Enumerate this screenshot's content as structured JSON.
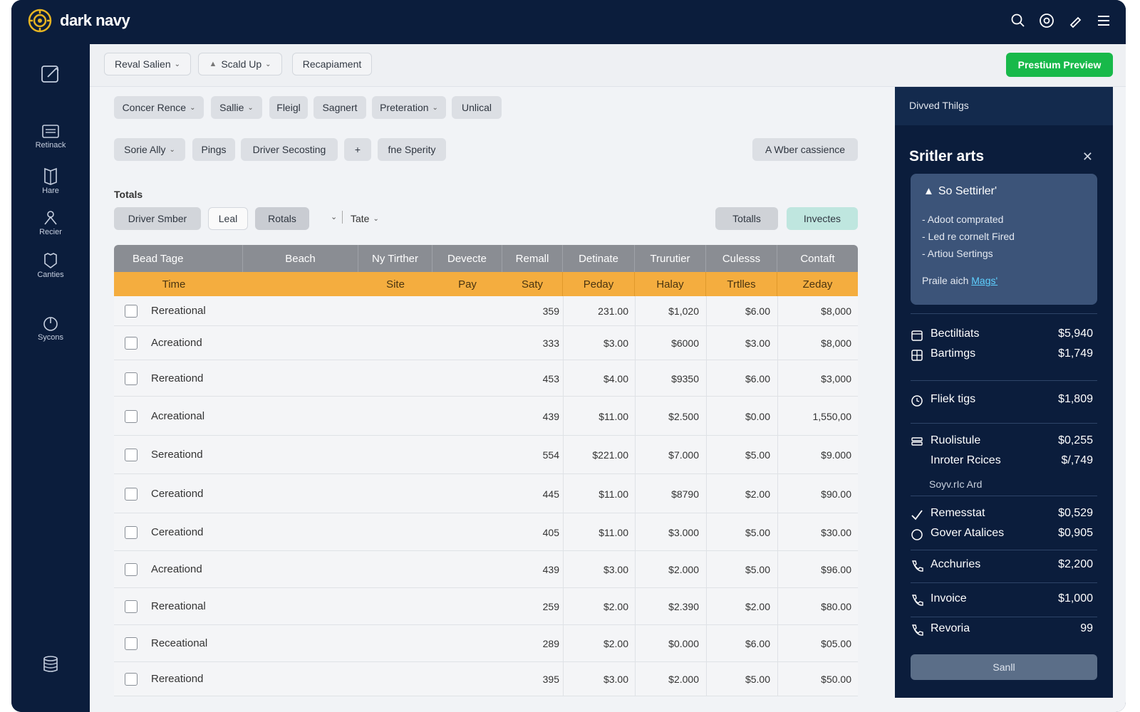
{
  "app": {
    "brand": "dark navy"
  },
  "colors": {
    "accent": "#18b94a",
    "header": "#8a8d93",
    "subheader": "#f4ad3f",
    "navy": "#0b1d3c"
  },
  "topbar": {
    "icons": [
      "search-icon",
      "at-icon",
      "pen-icon",
      "menu-icon"
    ]
  },
  "sidebar": {
    "items": [
      {
        "label": "",
        "icon": "edit-icon"
      },
      {
        "label": "Retinack",
        "icon": "inbox-icon"
      },
      {
        "label": "Hare",
        "icon": "book-icon"
      },
      {
        "label": "Recier",
        "icon": "tool-icon"
      },
      {
        "label": "Canties",
        "icon": "shield-icon"
      },
      {
        "label": "Sycons",
        "icon": "power-icon"
      }
    ],
    "bottom_icon": "stack-icon"
  },
  "toolbar": {
    "btn1": "Reval Salien",
    "btn2": "Scald Up",
    "btn3": "Recapiament",
    "premium": "Prestium Preview"
  },
  "filters1": [
    "Concer Rence",
    "Sallie",
    "Fleigl",
    "Sagnert",
    "Preteration",
    "Unlical"
  ],
  "filters2": {
    "a": "Sorie Ally",
    "b": "Pings",
    "c": "Driver Secosting",
    "d": "+",
    "e": "fne Sperity",
    "right": "A Wber cassience"
  },
  "totals": {
    "title": "Totals",
    "tabs": [
      "Driver Smber",
      "Leal",
      "Rotals"
    ],
    "tate": "Tate",
    "btn_totals": "Totalls",
    "btn_invected": "Invectes"
  },
  "table": {
    "headers": [
      "Bead Tage",
      "Beach",
      "Ny Tirther",
      "Devecte",
      "Remall",
      "Detinate",
      "Trurutier",
      "Culesss",
      "Contaft"
    ],
    "subheaders": [
      "Time",
      "Site",
      "Pay",
      "Saty",
      "Peday",
      "Halay",
      "Trtlles",
      "Zeday"
    ],
    "rows": [
      [
        "Rereational",
        "359",
        "231.00",
        "$1,020",
        "$6.00",
        "$8,000"
      ],
      [
        "Acreationd",
        "333",
        "$3.00",
        "$6000",
        "$3.00",
        "$8,000"
      ],
      [
        "Rereationd",
        "453",
        "$4.00",
        "$9350",
        "$6.00",
        "$3,000"
      ],
      [
        "Acreational",
        "439",
        "$11.00",
        "$2.500",
        "$0.00",
        "1,550,00"
      ],
      [
        "Sereationd",
        "554",
        "$221.00",
        "$7.000",
        "$5.00",
        "$9.000"
      ],
      [
        "Cereationd",
        "445",
        "$11.00",
        "$8790",
        "$2.00",
        "$90.00"
      ],
      [
        "Cereationd",
        "405",
        "$11.00",
        "$3.000",
        "$5.00",
        "$30.00"
      ],
      [
        "Acreationd",
        "439",
        "$3.00",
        "$2.000",
        "$5.00",
        "$96.00"
      ],
      [
        "Rereational",
        "259",
        "$2.00",
        "$2.390",
        "$2.00",
        "$80.00"
      ],
      [
        "Receational",
        "289",
        "$2.00",
        "$0.000",
        "$6.00",
        "$05.00"
      ],
      [
        "Rereationd",
        "395",
        "$3.00",
        "$2.000",
        "$5.00",
        "$50.00"
      ]
    ]
  },
  "panel": {
    "header": "Divved Thilgs",
    "title": "Sritler arts",
    "alert": {
      "title": "So Settirler'",
      "lines": [
        "- Adoot comprated",
        "- Led re cornelt Fired",
        "- Artiou Sertings"
      ],
      "footer_prefix": "Praile aich ",
      "footer_link": "Mags'"
    },
    "items": [
      {
        "label": "Bectiltiats",
        "amount": "$5,940",
        "icon": "calendar-icon"
      },
      {
        "label": "Bartimgs",
        "amount": "$1,749",
        "icon": "grid-icon"
      },
      {
        "label": "Fliek tigs",
        "amount": "$1,809",
        "icon": "clock-icon"
      },
      {
        "label": "Ruolistule",
        "amount": "$0,255",
        "icon": "layers-icon"
      },
      {
        "label": "Inroter Rcices",
        "amount": "$/,749",
        "icon": ""
      },
      {
        "label": "Remesstat",
        "amount": "$0,529",
        "icon": "check-icon"
      },
      {
        "label": "Gover Atalices",
        "amount": "$0,905",
        "icon": "circle-icon"
      },
      {
        "label": "Acchuries",
        "amount": "$2,200",
        "icon": "phone-icon"
      },
      {
        "label": "Invoice",
        "amount": "$1,000",
        "icon": "phone-icon"
      },
      {
        "label": "Revoria",
        "amount": "99",
        "icon": "phone-icon"
      }
    ],
    "sub_label": "Soyv.rIc Ard",
    "send": "Sanll"
  }
}
